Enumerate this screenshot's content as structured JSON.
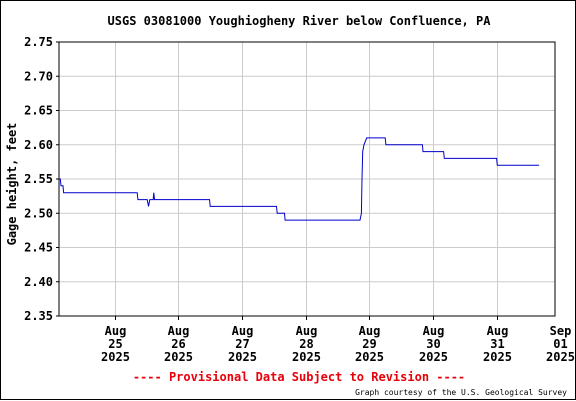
{
  "chart_data": {
    "type": "line",
    "title": "USGS 03081000 Youghiogheny River below Confluence, PA",
    "xlabel": "",
    "ylabel": "Gage height, feet",
    "ylim": [
      2.35,
      2.75
    ],
    "y_ticks": [
      "2.35",
      "2.40",
      "2.45",
      "2.50",
      "2.55",
      "2.60",
      "2.65",
      "2.70",
      "2.75"
    ],
    "xlim": [
      "2025-08-24T15:00",
      "2025-09-01T10:00"
    ],
    "x_ticks": [
      {
        "at": "2025-08-25T12:00",
        "lines": [
          "Aug",
          "25",
          "2025"
        ]
      },
      {
        "at": "2025-08-26T12:00",
        "lines": [
          "Aug",
          "26",
          "2025"
        ]
      },
      {
        "at": "2025-08-27T12:00",
        "lines": [
          "Aug",
          "27",
          "2025"
        ]
      },
      {
        "at": "2025-08-28T12:00",
        "lines": [
          "Aug",
          "28",
          "2025"
        ]
      },
      {
        "at": "2025-08-29T12:00",
        "lines": [
          "Aug",
          "29",
          "2025"
        ]
      },
      {
        "at": "2025-08-30T12:00",
        "lines": [
          "Aug",
          "30",
          "2025"
        ]
      },
      {
        "at": "2025-08-31T12:00",
        "lines": [
          "Aug",
          "31",
          "2025"
        ]
      },
      {
        "at": "2025-09-01T12:00",
        "lines": [
          "Sep",
          "01",
          "2025"
        ]
      }
    ],
    "grid": true,
    "line_color": "#0000cc",
    "series": [
      {
        "points": [
          [
            "2025-08-24T15:00",
            2.55
          ],
          [
            "2025-08-24T15:30",
            2.55
          ],
          [
            "2025-08-24T15:45",
            2.54
          ],
          [
            "2025-08-24T16:30",
            2.54
          ],
          [
            "2025-08-24T16:45",
            2.53
          ],
          [
            "2025-08-25T20:30",
            2.53
          ],
          [
            "2025-08-25T20:45",
            2.52
          ],
          [
            "2025-08-26T00:15",
            2.52
          ],
          [
            "2025-08-26T00:45",
            2.51
          ],
          [
            "2025-08-26T01:15",
            2.52
          ],
          [
            "2025-08-26T02:30",
            2.52
          ],
          [
            "2025-08-26T02:45",
            2.53
          ],
          [
            "2025-08-26T03:00",
            2.52
          ],
          [
            "2025-08-26T23:45",
            2.52
          ],
          [
            "2025-08-27T00:00",
            2.51
          ],
          [
            "2025-08-28T01:00",
            2.51
          ],
          [
            "2025-08-28T01:15",
            2.5
          ],
          [
            "2025-08-28T04:00",
            2.5
          ],
          [
            "2025-08-28T04:15",
            2.49
          ],
          [
            "2025-08-29T08:30",
            2.49
          ],
          [
            "2025-08-29T09:00",
            2.5
          ],
          [
            "2025-08-29T09:15",
            2.55
          ],
          [
            "2025-08-29T09:30",
            2.59
          ],
          [
            "2025-08-29T10:00",
            2.6
          ],
          [
            "2025-08-29T11:00",
            2.61
          ],
          [
            "2025-08-29T11:15",
            2.61
          ],
          [
            "2025-08-29T18:00",
            2.61
          ],
          [
            "2025-08-29T18:15",
            2.6
          ],
          [
            "2025-08-30T08:00",
            2.6
          ],
          [
            "2025-08-30T08:15",
            2.59
          ],
          [
            "2025-08-30T16:00",
            2.59
          ],
          [
            "2025-08-30T16:15",
            2.58
          ],
          [
            "2025-08-31T12:00",
            2.58
          ],
          [
            "2025-08-31T12:15",
            2.57
          ],
          [
            "2025-09-01T04:00",
            2.57
          ]
        ]
      }
    ],
    "footer_note": "---- Provisional Data Subject to Revision ----",
    "credit": "Graph courtesy of the U.S. Geological Survey"
  }
}
